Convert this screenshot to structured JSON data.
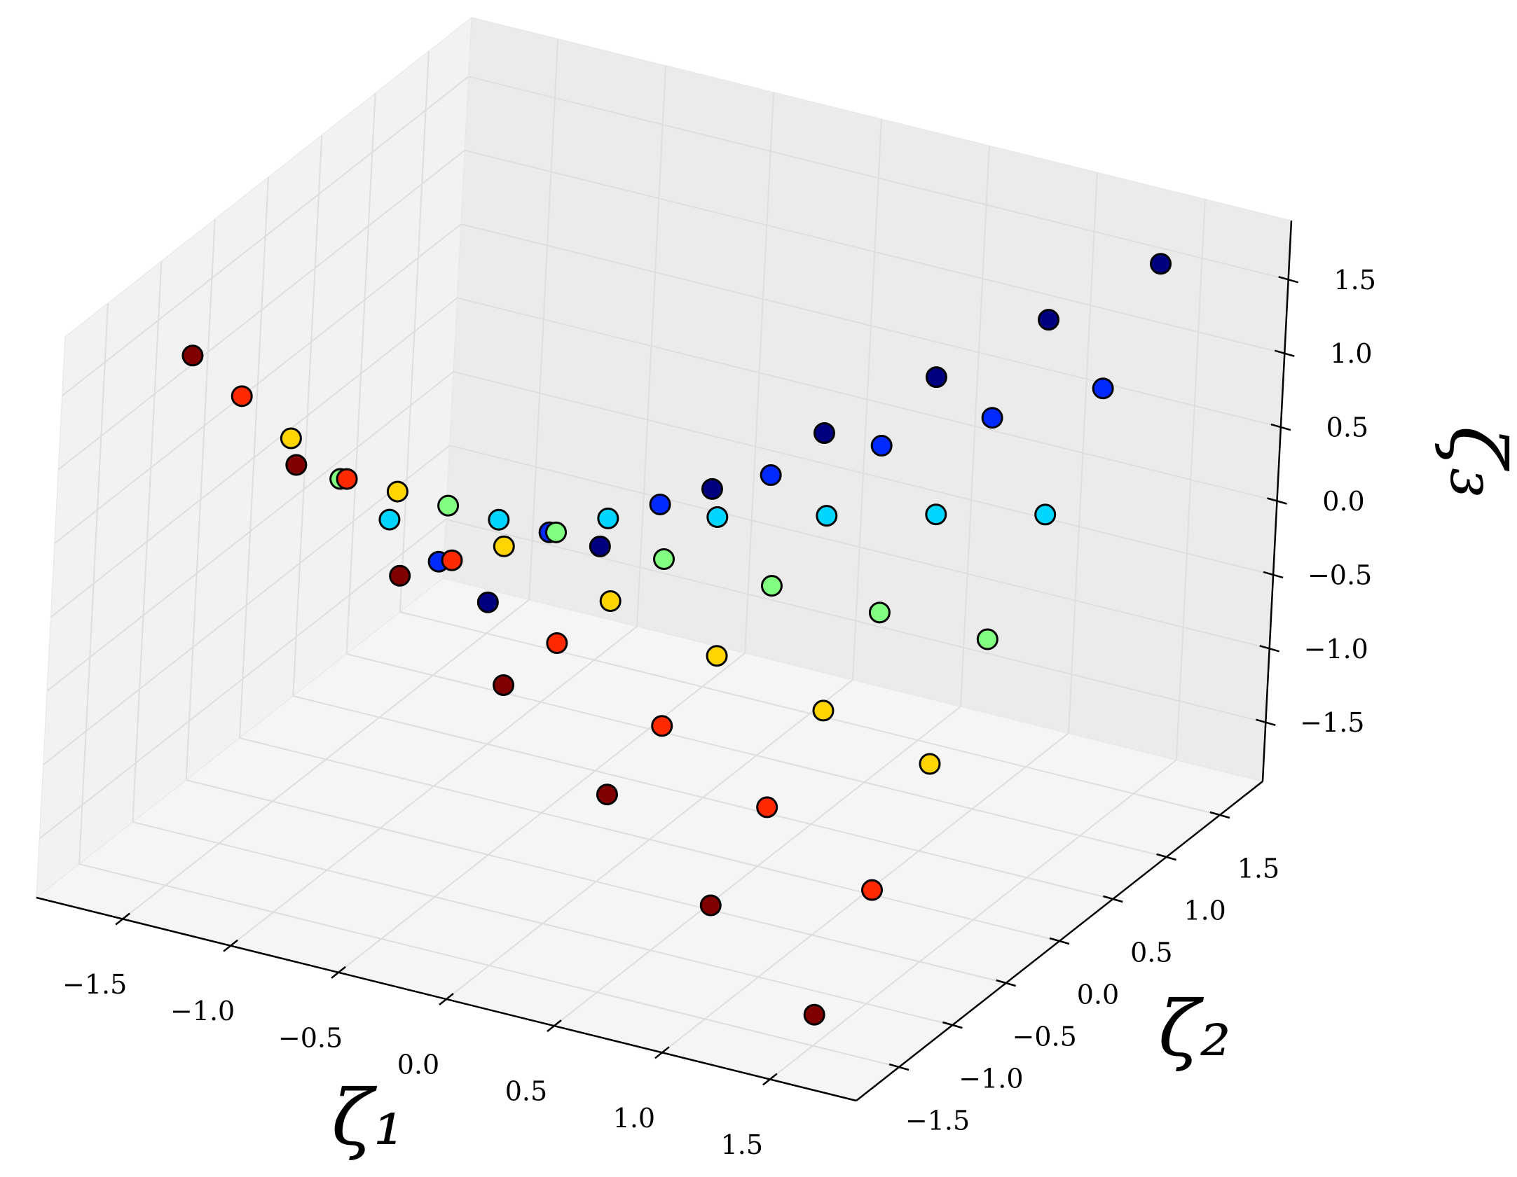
{
  "chart_data": {
    "type": "scatter3d",
    "x_label": "ζ₁",
    "y_label": "ζ₂",
    "z_label": "ζ₃",
    "x": [
      -1.5,
      -1.5,
      -1.5,
      -1.5,
      -1.5,
      -1.5,
      -1.5,
      -1,
      -1,
      -1,
      -1,
      -1,
      -1,
      -1,
      -0.5,
      -0.5,
      -0.5,
      -0.5,
      -0.5,
      -0.5,
      -0.5,
      0,
      0,
      0,
      0,
      0,
      0,
      0,
      0.5,
      0.5,
      0.5,
      0.5,
      0.5,
      0.5,
      0.5,
      1,
      1,
      1,
      1,
      1,
      1,
      1,
      1.5,
      1.5,
      1.5,
      1.5,
      1.5,
      1.5,
      1.5
    ],
    "y": [
      1.5,
      1,
      0.5,
      0,
      -0.5,
      -1,
      -1.5,
      1.5,
      1,
      0.5,
      0,
      -0.5,
      -1,
      -1.5,
      1.5,
      1,
      0.5,
      0,
      -0.5,
      -1,
      -1.5,
      1.5,
      1,
      0.5,
      0,
      -0.5,
      -1,
      -1.5,
      1.5,
      1,
      0.5,
      0,
      -0.5,
      -1,
      -1.5,
      1.5,
      1,
      0.5,
      0,
      -0.5,
      -1,
      -1.5,
      1.5,
      1,
      0.5,
      0,
      -0.5,
      -1,
      -1.5
    ],
    "z": [
      -1.69,
      -1.13,
      -0.56,
      0,
      0.56,
      1.13,
      1.69,
      -1.13,
      -0.75,
      -0.38,
      0,
      0.38,
      0.75,
      1.13,
      -0.56,
      -0.38,
      -0.19,
      0,
      0.19,
      0.38,
      0.56,
      0,
      0,
      0,
      0,
      0,
      0,
      0,
      0.56,
      0.38,
      0.19,
      0,
      -0.19,
      -0.38,
      -0.56,
      1.13,
      0.75,
      0.38,
      0,
      -0.38,
      -0.75,
      -1.13,
      1.69,
      1.13,
      0.56,
      0,
      -0.56,
      -1.13,
      -1.69
    ],
    "colormap": "jet_r",
    "color_by": "y",
    "edgecolor": "#000000",
    "xlim": [
      -1.9,
      1.9
    ],
    "ylim": [
      -1.9,
      1.9
    ],
    "zlim": [
      -1.9,
      1.9
    ],
    "xticks": [
      {
        "value": -1.5,
        "label": "−1.5"
      },
      {
        "value": -1,
        "label": "−1.0"
      },
      {
        "value": -0.5,
        "label": "−0.5"
      },
      {
        "value": 0,
        "label": "0.0"
      },
      {
        "value": 0.5,
        "label": "0.5"
      },
      {
        "value": 1,
        "label": "1.0"
      },
      {
        "value": 1.5,
        "label": "1.5"
      }
    ],
    "yticks": [
      {
        "value": -1.5,
        "label": "−1.5"
      },
      {
        "value": -1,
        "label": "−1.0"
      },
      {
        "value": -0.5,
        "label": "−0.5"
      },
      {
        "value": 0,
        "label": "0.0"
      },
      {
        "value": 0.5,
        "label": "0.5"
      },
      {
        "value": 1,
        "label": "1.0"
      },
      {
        "value": 1.5,
        "label": "1.5"
      }
    ],
    "zticks": [
      {
        "value": -1.5,
        "label": "−1.5"
      },
      {
        "value": -1,
        "label": "−1.0"
      },
      {
        "value": -0.5,
        "label": "−0.5"
      },
      {
        "value": 0,
        "label": "0.0"
      },
      {
        "value": 0.5,
        "label": "0.5"
      },
      {
        "value": 1,
        "label": "1.0"
      },
      {
        "value": 1.5,
        "label": "1.5"
      }
    ],
    "grid": true
  }
}
